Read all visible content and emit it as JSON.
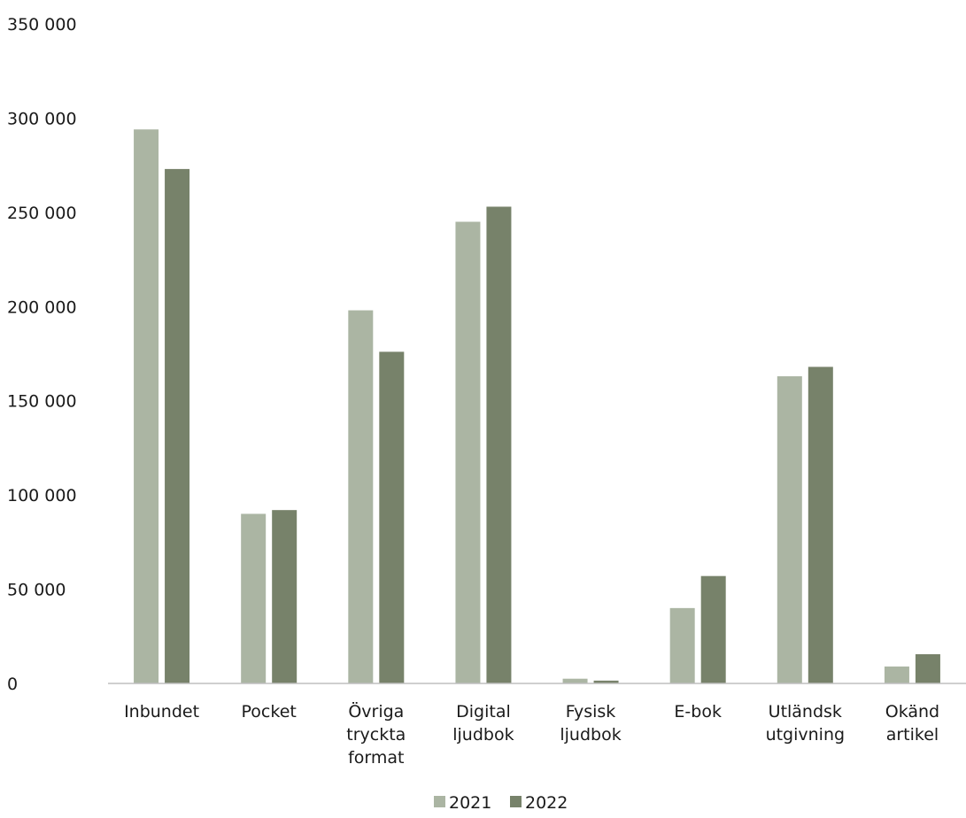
{
  "chart_data": {
    "type": "bar",
    "categories": [
      [
        "Inbundet"
      ],
      [
        "Pocket"
      ],
      [
        "Övriga",
        "tryckta",
        "format"
      ],
      [
        "Digital",
        "ljudbok"
      ],
      [
        "Fysisk",
        "ljudbok"
      ],
      [
        "E-bok"
      ],
      [
        "Utländsk",
        "utgivning"
      ],
      [
        "Okänd",
        "artikel"
      ]
    ],
    "series": [
      {
        "name": "2021",
        "color": "#abb5a3",
        "values": [
          294000,
          90000,
          198000,
          245000,
          2500,
          40000,
          163000,
          9000
        ]
      },
      {
        "name": "2022",
        "color": "#77826a",
        "values": [
          273000,
          92000,
          176000,
          253000,
          1500,
          57000,
          168000,
          15500
        ]
      }
    ],
    "title": "",
    "xlabel": "",
    "ylabel": "",
    "ylim": [
      0,
      350000
    ],
    "yticks": [
      0,
      50000,
      100000,
      150000,
      200000,
      250000,
      300000,
      350000
    ],
    "ytick_labels": [
      "0",
      "50 000",
      "100 000",
      "150 000",
      "200 000",
      "250 000",
      "300 000",
      "350 000"
    ],
    "grid": false,
    "legend_position": "bottom-center",
    "axis_color": "#bfbfbf"
  }
}
